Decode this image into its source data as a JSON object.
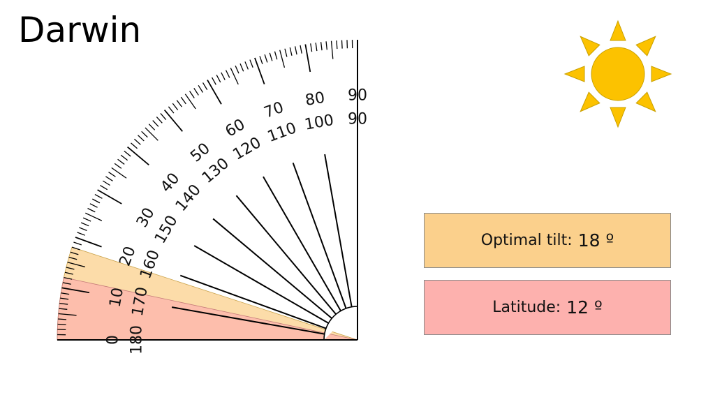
{
  "title": "Darwin",
  "protractor": {
    "outer_scale": [
      "0",
      "10",
      "20",
      "30",
      "40",
      "50",
      "60",
      "70",
      "80",
      "90"
    ],
    "inner_scale": [
      "180",
      "170",
      "160",
      "150",
      "140",
      "130",
      "120",
      "110",
      "100",
      "90"
    ]
  },
  "optimal_tilt": {
    "label": "Optimal tilt:",
    "value": "18 º",
    "degrees": 18,
    "color": "#fbd08c"
  },
  "latitude": {
    "label": "Latitude:",
    "value": "12 º",
    "degrees": 12,
    "color": "#fdb1ae"
  },
  "sun": {
    "icon": "sun-icon",
    "color": "#fcc200",
    "outline": "#c9a000"
  }
}
